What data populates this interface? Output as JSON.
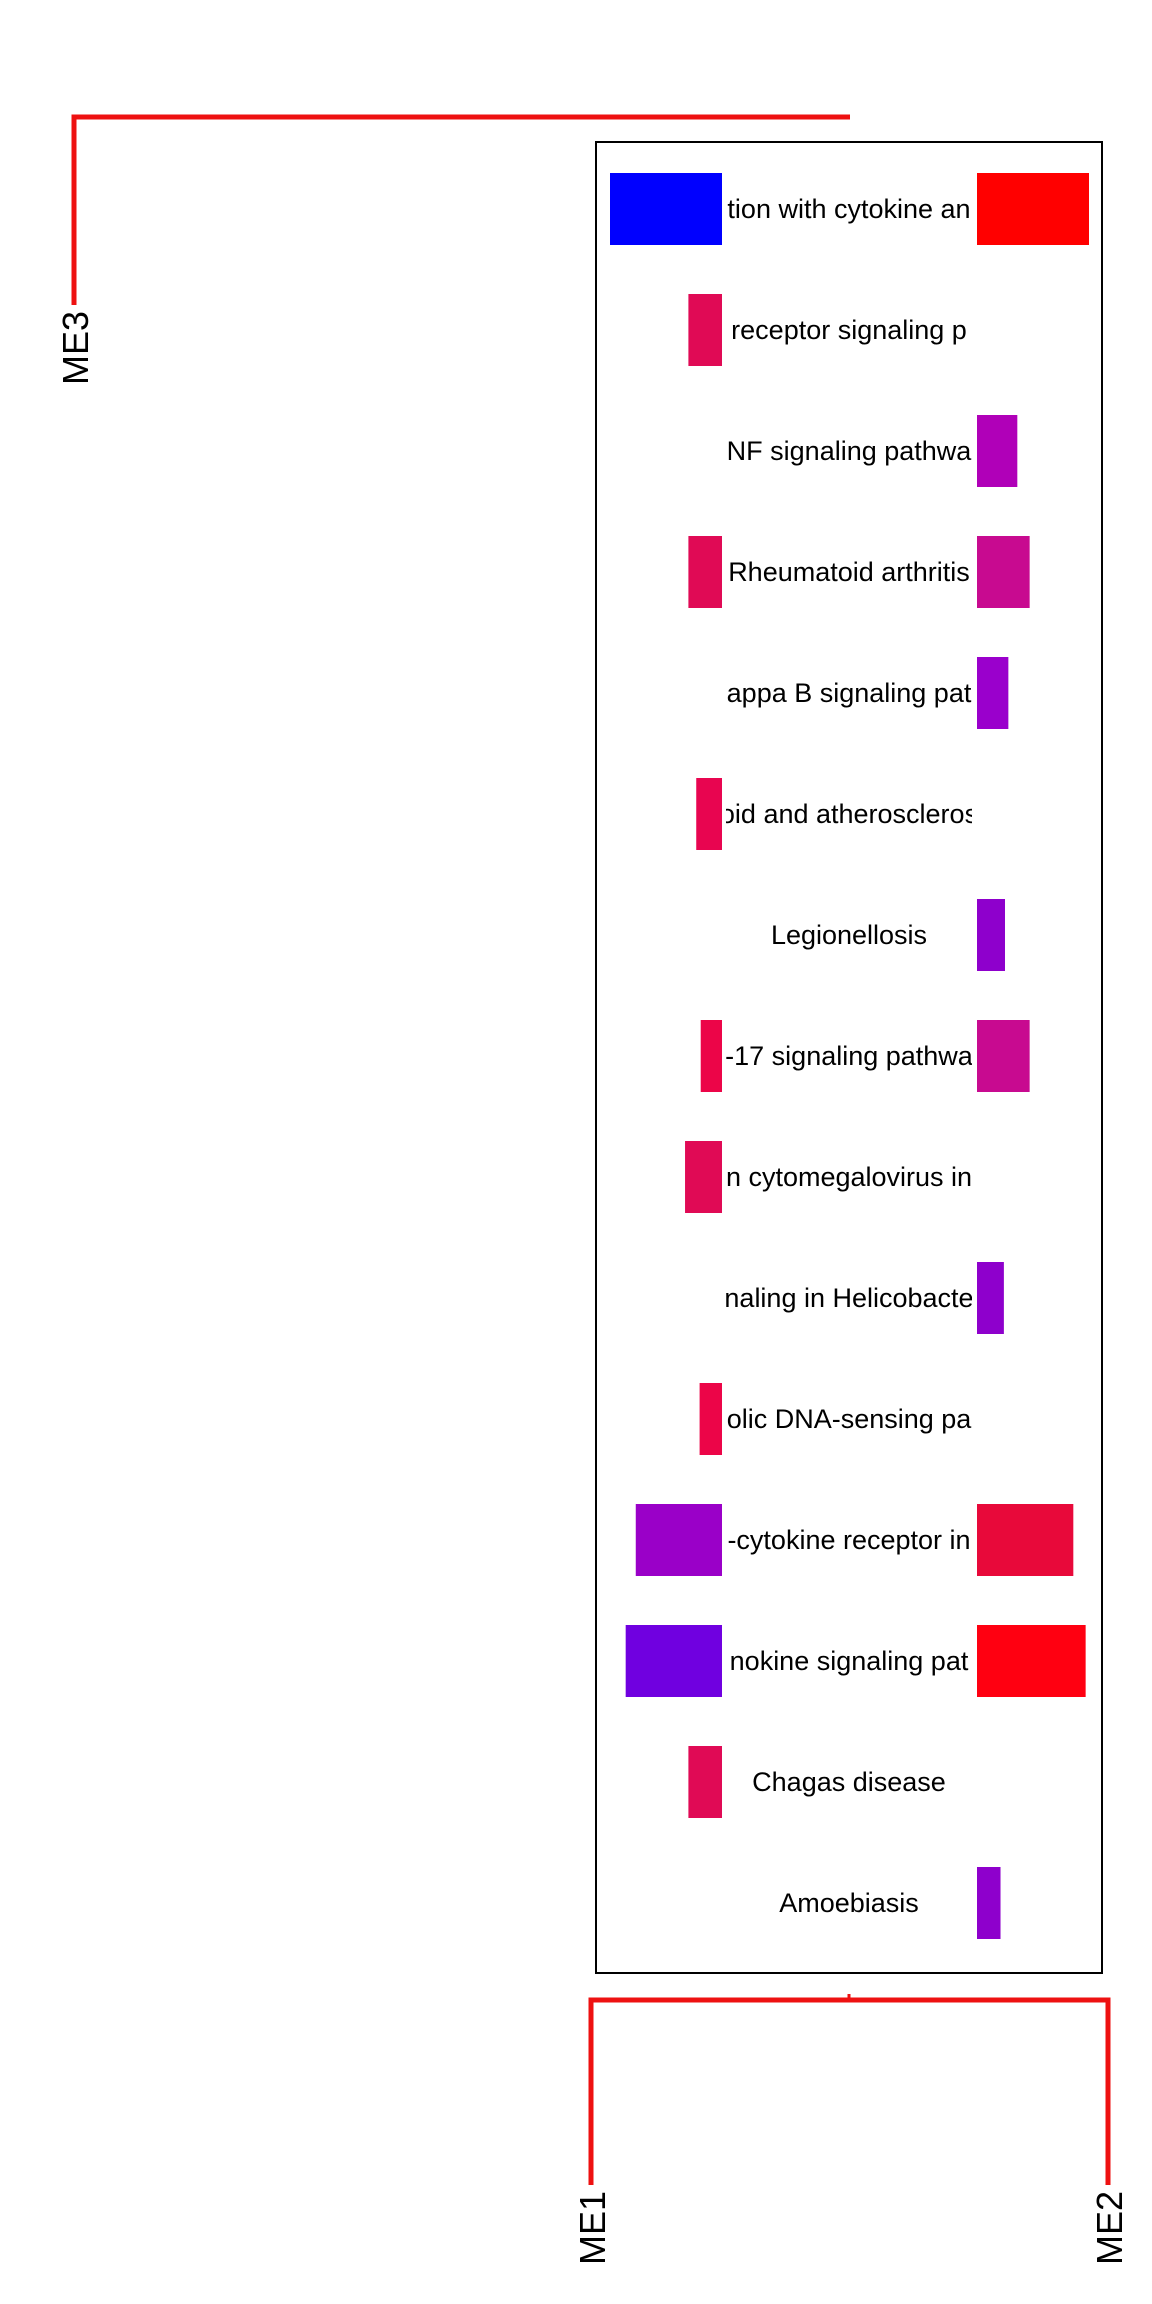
{
  "chart_data": {
    "type": "bar",
    "title": "",
    "xlabel": "",
    "ylabel": "",
    "left_module": "ME1",
    "right_module": "ME2",
    "tree_module": "ME3",
    "legend": "none",
    "line_color": "#ee1111",
    "frame_color": "#000000",
    "categories": [
      {
        "label": "tion with cytokine an",
        "me1": 1.0,
        "me1_color": "#0000ff",
        "me2": 1.0,
        "me2_color": "#ff0000"
      },
      {
        "label": "receptor signaling p",
        "me1": 0.3,
        "me1_color": "#e00a55",
        "me2": 0,
        "me2_color": ""
      },
      {
        "label": "NF signaling pathwa",
        "me1": 0,
        "me1_color": "",
        "me2": 0.36,
        "me2_color": "#b000b8"
      },
      {
        "label": "Rheumatoid arthritis",
        "me1": 0.3,
        "me1_color": "#e00a55",
        "me2": 0.47,
        "me2_color": "#c80a90"
      },
      {
        "label": "appa B signaling pat",
        "me1": 0,
        "me1_color": "",
        "me2": 0.28,
        "me2_color": "#9a00cc"
      },
      {
        "label": "oid and atheroscleros",
        "me1": 0.23,
        "me1_color": "#e80550",
        "me2": 0,
        "me2_color": ""
      },
      {
        "label": "Legionellosis",
        "me1": 0,
        "me1_color": "",
        "me2": 0.25,
        "me2_color": "#8e00cc"
      },
      {
        "label": "-17 signaling pathwa",
        "me1": 0.19,
        "me1_color": "#ec0548",
        "me2": 0.47,
        "me2_color": "#c80a90"
      },
      {
        "label": "n cytomegalovirus in",
        "me1": 0.33,
        "me1_color": "#e00a55",
        "me2": 0,
        "me2_color": ""
      },
      {
        "label": "naling in Helicobacte",
        "me1": 0,
        "me1_color": "",
        "me2": 0.24,
        "me2_color": "#8e00cc"
      },
      {
        "label": "olic DNA-sensing pa",
        "me1": 0.2,
        "me1_color": "#ec0548",
        "me2": 0,
        "me2_color": ""
      },
      {
        "label": "-cytokine receptor in",
        "me1": 0.77,
        "me1_color": "#9a00c8",
        "me2": 0.86,
        "me2_color": "#e8093a"
      },
      {
        "label": "nokine signaling pat",
        "me1": 0.86,
        "me1_color": "#7000e0",
        "me2": 0.97,
        "me2_color": "#ff0011"
      },
      {
        "label": "Chagas disease",
        "me1": 0.3,
        "me1_color": "#e00a55",
        "me2": 0,
        "me2_color": ""
      },
      {
        "label": "Amoebiasis",
        "me1": 0,
        "me1_color": "",
        "me2": 0.21,
        "me2_color": "#8e00cc"
      }
    ]
  }
}
